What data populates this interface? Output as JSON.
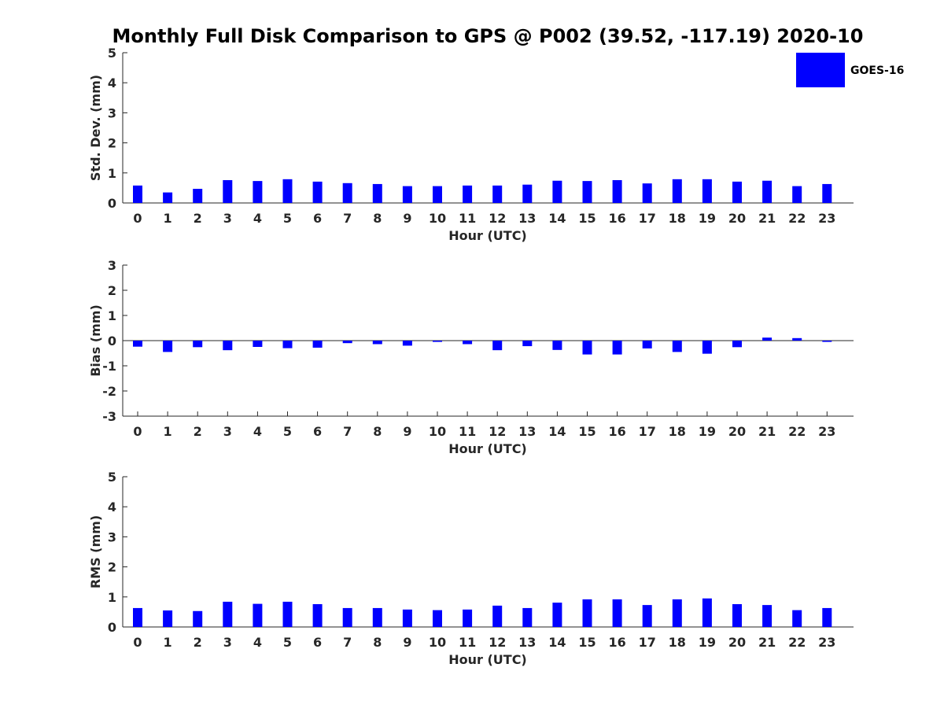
{
  "title": "Monthly Full Disk Comparison to GPS @ P002 (39.52, -117.19) 2020-10",
  "legend": {
    "label": "GOES-16",
    "color": "#0000ff",
    "placement": "top-right"
  },
  "chart_data": [
    {
      "type": "bar",
      "xlabel": "Hour (UTC)",
      "ylabel": "Std. Dev. (mm)",
      "ylim": [
        0,
        5
      ],
      "yticks": [
        0,
        1,
        2,
        3,
        4,
        5
      ],
      "categories": [
        "0",
        "1",
        "2",
        "3",
        "4",
        "5",
        "6",
        "7",
        "8",
        "9",
        "10",
        "11",
        "12",
        "13",
        "14",
        "15",
        "16",
        "17",
        "18",
        "19",
        "20",
        "21",
        "22",
        "23"
      ],
      "series": [
        {
          "name": "GOES-16",
          "values": [
            0.58,
            0.35,
            0.47,
            0.76,
            0.73,
            0.79,
            0.71,
            0.66,
            0.63,
            0.56,
            0.56,
            0.58,
            0.58,
            0.61,
            0.74,
            0.73,
            0.76,
            0.65,
            0.79,
            0.79,
            0.71,
            0.74,
            0.56,
            0.63
          ]
        }
      ]
    },
    {
      "type": "bar",
      "xlabel": "Hour (UTC)",
      "ylabel": "Bias (mm)",
      "ylim": [
        -3,
        3
      ],
      "yticks": [
        -3,
        -2,
        -1,
        0,
        1,
        2,
        3
      ],
      "categories": [
        "0",
        "1",
        "2",
        "3",
        "4",
        "5",
        "6",
        "7",
        "8",
        "9",
        "10",
        "11",
        "12",
        "13",
        "14",
        "15",
        "16",
        "17",
        "18",
        "19",
        "20",
        "21",
        "22",
        "23"
      ],
      "series": [
        {
          "name": "GOES-16",
          "values": [
            -0.24,
            -0.45,
            -0.26,
            -0.38,
            -0.25,
            -0.3,
            -0.28,
            -0.1,
            -0.14,
            -0.2,
            -0.05,
            -0.14,
            -0.38,
            -0.22,
            -0.37,
            -0.55,
            -0.55,
            -0.31,
            -0.45,
            -0.52,
            -0.26,
            0.12,
            0.1,
            -0.05
          ]
        }
      ]
    },
    {
      "type": "bar",
      "xlabel": "Hour (UTC)",
      "ylabel": "RMS (mm)",
      "ylim": [
        0,
        5
      ],
      "yticks": [
        0,
        1,
        2,
        3,
        4,
        5
      ],
      "categories": [
        "0",
        "1",
        "2",
        "3",
        "4",
        "5",
        "6",
        "7",
        "8",
        "9",
        "10",
        "11",
        "12",
        "13",
        "14",
        "15",
        "16",
        "17",
        "18",
        "19",
        "20",
        "21",
        "22",
        "23"
      ],
      "series": [
        {
          "name": "GOES-16",
          "values": [
            0.63,
            0.55,
            0.53,
            0.84,
            0.77,
            0.84,
            0.76,
            0.63,
            0.63,
            0.58,
            0.56,
            0.58,
            0.71,
            0.63,
            0.81,
            0.92,
            0.92,
            0.73,
            0.92,
            0.95,
            0.76,
            0.73,
            0.56,
            0.63
          ]
        }
      ]
    }
  ]
}
